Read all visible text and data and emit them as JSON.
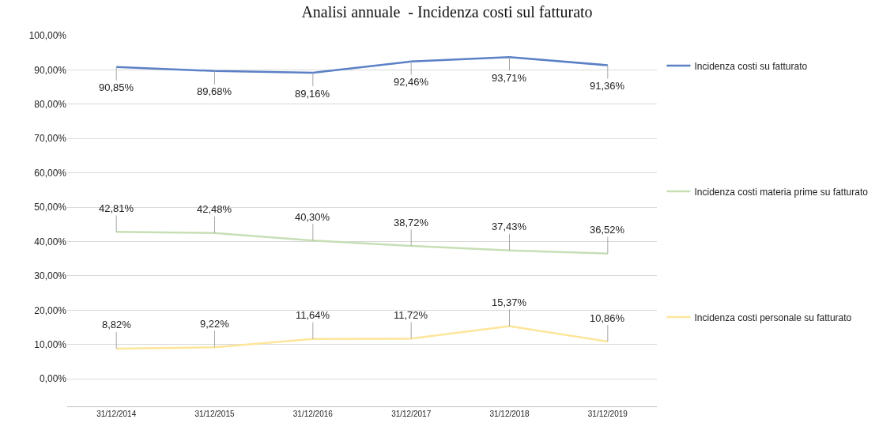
{
  "chart_data": {
    "type": "line",
    "title": "Analisi annuale  - Incidenza costi sul fatturato",
    "categories": [
      "31/12/2014",
      "31/12/2015",
      "31/12/2016",
      "31/12/2017",
      "31/12/2018",
      "31/12/2019"
    ],
    "series": [
      {
        "name": "Incidenza costi su fatturato",
        "color": "#5b80c6",
        "values": [
          90.85,
          89.68,
          89.16,
          92.46,
          93.71,
          91.36
        ],
        "value_labels": [
          "90,85%",
          "89,68%",
          "89,16%",
          "92,46%",
          "93,71%",
          "91,36%"
        ]
      },
      {
        "name": "Incidenza costi materia prime su fatturato",
        "color": "#c6dfb5",
        "values": [
          42.81,
          42.48,
          40.3,
          38.72,
          37.43,
          36.52
        ],
        "value_labels": [
          "42,81%",
          "42,48%",
          "40,30%",
          "38,72%",
          "37,43%",
          "36,52%"
        ]
      },
      {
        "name": "Incidenza costi personale su fatturato",
        "color": "#fde59a",
        "values": [
          8.82,
          9.22,
          11.64,
          11.72,
          15.37,
          10.86
        ],
        "value_labels": [
          "8,82%",
          "9,22%",
          "11,64%",
          "11,72%",
          "15,37%",
          "10,86%"
        ]
      }
    ],
    "ylim": [
      -8,
      100
    ],
    "yticks": [
      {
        "value": 0,
        "label": "0,00%"
      },
      {
        "value": 10,
        "label": "10,00%"
      },
      {
        "value": 20,
        "label": "20,00%"
      },
      {
        "value": 30,
        "label": "30,00%"
      },
      {
        "value": 40,
        "label": "40,00%"
      },
      {
        "value": 50,
        "label": "50,00%"
      },
      {
        "value": 60,
        "label": "60,00%"
      },
      {
        "value": 70,
        "label": "70,00%"
      },
      {
        "value": 80,
        "label": "80,00%"
      },
      {
        "value": 90,
        "label": "90,00%"
      },
      {
        "value": 100,
        "label": "100,00%"
      }
    ],
    "grid": "y",
    "legend": "right",
    "marker": "none",
    "line_style": "solid"
  }
}
